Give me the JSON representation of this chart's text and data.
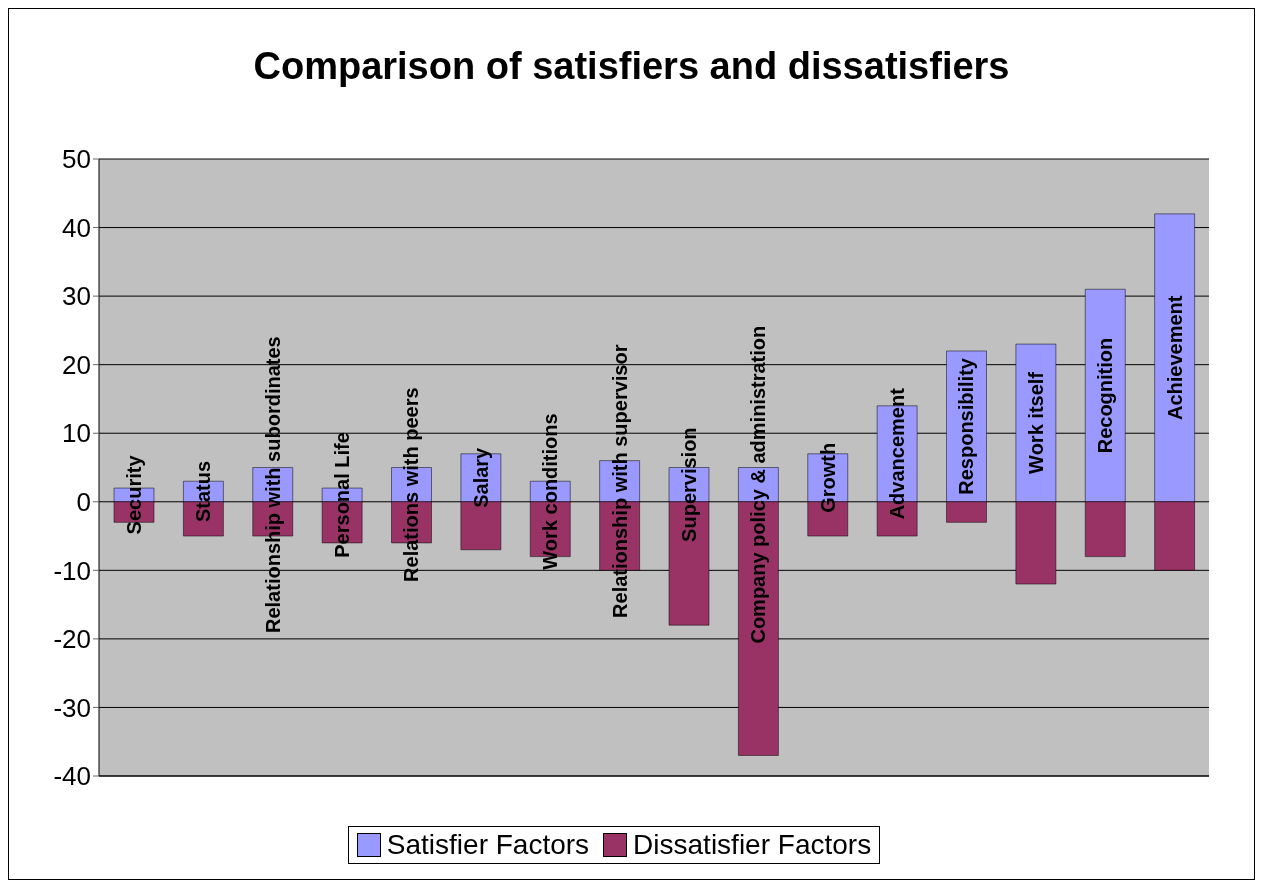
{
  "chart_data": {
    "type": "bar",
    "title": "Comparison of satisfiers and dissatisfiers",
    "categories": [
      "Security",
      "Status",
      "Relationship with subordinates",
      "Personal Life",
      "Relations with peers",
      "Salary",
      "Work conditions",
      "Relationship with supervisor",
      "Supervision",
      "Company policy & administration",
      "Growth",
      "Advancement",
      "Responsibility",
      "Work itself",
      "Recognition",
      "Achievement"
    ],
    "series": [
      {
        "name": "Satisfier Factors",
        "color": "#9999ff",
        "values": [
          2,
          3,
          5,
          2,
          5,
          7,
          3,
          6,
          5,
          5,
          7,
          14,
          22,
          23,
          31,
          42
        ]
      },
      {
        "name": "Dissatisfier Factors",
        "color": "#993366",
        "values": [
          -3,
          -5,
          -5,
          -6,
          -6,
          -7,
          -8,
          -10,
          -18,
          -37,
          -5,
          -5,
          -3,
          -12,
          -8,
          -10
        ]
      }
    ],
    "stacked": true,
    "ylim": [
      -40,
      50
    ],
    "yticks": [
      -40,
      -30,
      -20,
      -10,
      0,
      10,
      20,
      30,
      40,
      50
    ],
    "grid": "y",
    "legend": "bottom"
  }
}
